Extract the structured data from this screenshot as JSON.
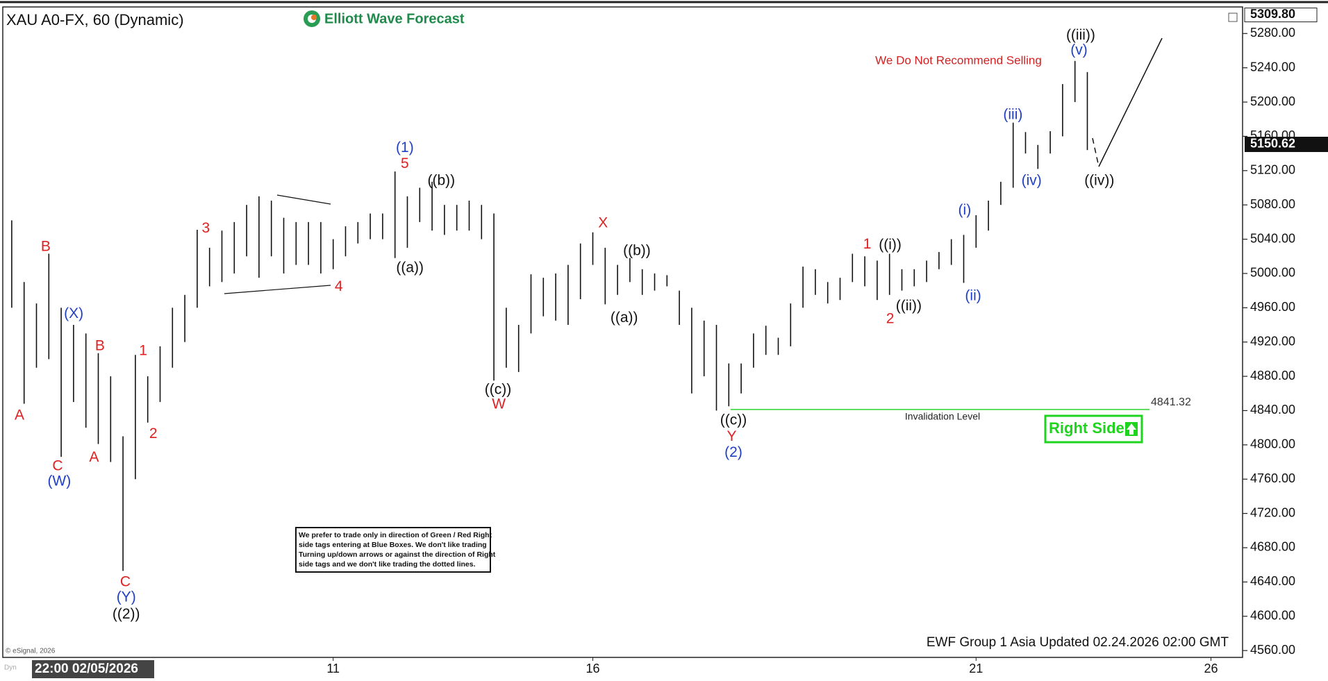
{
  "chart_data": {
    "type": "range-bar",
    "title": "XAU A0-FX, 60 (Dynamic)",
    "brand": "Elliott Wave Forecast",
    "warning": "We Do Not Recommend Selling",
    "categories": [
      "22:00 02/05/2026",
      null,
      null,
      null,
      null,
      null,
      null,
      null,
      null,
      null,
      null,
      null,
      null,
      null,
      null,
      null,
      null,
      null,
      null,
      null,
      null,
      null,
      null,
      null,
      null,
      null,
      "11",
      null,
      null,
      null,
      null,
      null,
      null,
      null,
      null,
      null,
      null,
      null,
      null,
      null,
      null,
      null,
      null,
      null,
      null,
      null,
      null,
      "16",
      null,
      null,
      null,
      null,
      null,
      null,
      null,
      null,
      null,
      null,
      null,
      null,
      null,
      null,
      null,
      null,
      null,
      null,
      null,
      null,
      null,
      null,
      null,
      null,
      null,
      null,
      null,
      null,
      null,
      null,
      "21",
      null,
      null,
      null,
      null,
      null,
      null,
      null,
      null,
      null,
      null,
      null,
      null,
      null,
      null,
      null,
      null,
      null,
      null,
      "26",
      null,
      null
    ],
    "high": [
      5062,
      4990,
      4965,
      5023,
      4960,
      4940,
      4930,
      4907,
      4880,
      4810,
      4905,
      4880,
      4915,
      4960,
      4975,
      5051,
      5030,
      5050,
      5060,
      5080,
      5090,
      5085,
      5065,
      5060,
      5060,
      5060,
      5040,
      5055,
      5060,
      5070,
      5070,
      5119,
      5090,
      5100,
      5107,
      5080,
      5080,
      5085,
      5080,
      5070,
      4960,
      4940,
      4999,
      4995,
      5000,
      5010,
      5035,
      5048,
      5030,
      5010,
      5018,
      5005,
      5000,
      4998,
      4980,
      4960,
      4945,
      4940,
      4895,
      4895,
      4930,
      4939,
      4925,
      4965,
      5008,
      5005,
      4990,
      4995,
      5023,
      5020,
      5015,
      5023,
      5005,
      5005,
      5015,
      5025,
      5040,
      5045,
      5068,
      5085,
      5107,
      5176,
      5165,
      5150,
      5166,
      5221,
      5248,
      5235,
      null,
      null,
      null,
      null,
      null,
      null,
      null,
      null,
      null,
      null,
      null,
      null
    ],
    "low": [
      4960,
      4848,
      4890,
      4900,
      4786,
      4850,
      4820,
      4801,
      4780,
      4653,
      4760,
      4826,
      4850,
      4890,
      4920,
      4960,
      4985,
      4990,
      5000,
      5020,
      4995,
      5020,
      5000,
      5010,
      5010,
      5000,
      5005,
      5020,
      5035,
      5040,
      5040,
      5018,
      5030,
      5060,
      5050,
      5045,
      5050,
      5050,
      5040,
      4875,
      4890,
      4885,
      4930,
      4950,
      4945,
      4940,
      4970,
      5010,
      4964,
      4975,
      4990,
      4975,
      4980,
      4985,
      4940,
      4860,
      4880,
      4840,
      4845,
      4860,
      4890,
      4905,
      4905,
      4915,
      4960,
      4975,
      4965,
      4969,
      4990,
      4985,
      4969,
      4975,
      4980,
      4985,
      4990,
      5005,
      5010,
      4989,
      5030,
      5050,
      5080,
      5100,
      5140,
      5122,
      5140,
      5160,
      5200,
      5144,
      null,
      null,
      null,
      null,
      null,
      null,
      null,
      null,
      null,
      null,
      null,
      null
    ],
    "ylim": [
      4552,
      5311
    ],
    "yticks": [
      {
        "value": 4560,
        "label": "4560.00"
      },
      {
        "value": 4600,
        "label": "4600.00"
      },
      {
        "value": 4640,
        "label": "4640.00"
      },
      {
        "value": 4680,
        "label": "4680.00"
      },
      {
        "value": 4720,
        "label": "4720.00"
      },
      {
        "value": 4760,
        "label": "4760.00"
      },
      {
        "value": 4800,
        "label": "4800.00"
      },
      {
        "value": 4840,
        "label": "4840.00"
      },
      {
        "value": 4880,
        "label": "4880.00"
      },
      {
        "value": 4920,
        "label": "4920.00"
      },
      {
        "value": 4960,
        "label": "4960.00"
      },
      {
        "value": 5000,
        "label": "5000.00"
      },
      {
        "value": 5040,
        "label": "5040.00"
      },
      {
        "value": 5080,
        "label": "5080.00"
      },
      {
        "value": 5120,
        "label": "5120.00"
      },
      {
        "value": 5160,
        "label": "5160.00"
      },
      {
        "value": 5200,
        "label": "5200.00"
      },
      {
        "value": 5240,
        "label": "5240.00"
      },
      {
        "value": 5280,
        "label": "5280.00"
      }
    ],
    "top_price": {
      "value": 5309.8,
      "label": "5309.80"
    },
    "last_price": 5150.62,
    "invalidation": {
      "label": "Invalidation Level",
      "value": 4841.32
    },
    "right_side": "Right Side",
    "note": [
      "We prefer to trade only in direction of Green / Red Right",
      "side tags entering at Blue Boxes. We don't like trading",
      "Turning up/down arrows or against the direction of Right",
      "side tags and we don't like trading the dotted lines."
    ],
    "annotations": [
      {
        "text": "A",
        "color": "#e02020"
      },
      {
        "text": "B",
        "color": "#e02020"
      },
      {
        "text": "(X)",
        "color": "#1f3fc4"
      },
      {
        "text": "C",
        "color": "#e02020"
      },
      {
        "text": "(W)",
        "color": "#1f3fc4"
      },
      {
        "text": "A",
        "color": "#e02020"
      },
      {
        "text": "B",
        "color": "#e02020"
      },
      {
        "text": "1",
        "color": "#e02020"
      },
      {
        "text": "2",
        "color": "#e02020"
      },
      {
        "text": "C",
        "color": "#e02020"
      },
      {
        "text": "(Y)",
        "color": "#1f3fc4"
      },
      {
        "text": "((2))",
        "color": "#111111"
      },
      {
        "text": "3",
        "color": "#e02020"
      },
      {
        "text": "4",
        "color": "#e02020"
      },
      {
        "text": "5",
        "color": "#e02020"
      },
      {
        "text": "(1)",
        "color": "#1f3fc4"
      },
      {
        "text": "((a))",
        "color": "#111111"
      },
      {
        "text": "((b))",
        "color": "#111111"
      },
      {
        "text": "((c))",
        "color": "#111111"
      },
      {
        "text": "W",
        "color": "#e02020"
      },
      {
        "text": "X",
        "color": "#e02020"
      },
      {
        "text": "((b))",
        "color": "#111111"
      },
      {
        "text": "((a))",
        "color": "#111111"
      },
      {
        "text": "((c))",
        "color": "#111111"
      },
      {
        "text": "Y",
        "color": "#e02020"
      },
      {
        "text": "(2)",
        "color": "#1f3fc4"
      },
      {
        "text": "1",
        "color": "#e02020"
      },
      {
        "text": "((i))",
        "color": "#111111"
      },
      {
        "text": "2",
        "color": "#e02020"
      },
      {
        "text": "((ii))",
        "color": "#111111"
      },
      {
        "text": "(i)",
        "color": "#1f3fc4"
      },
      {
        "text": "(ii)",
        "color": "#1f3fc4"
      },
      {
        "text": "(iii)",
        "color": "#1f3fc4"
      },
      {
        "text": "(iv)",
        "color": "#1f3fc4"
      },
      {
        "text": "((iii))",
        "color": "#111111"
      },
      {
        "text": "(v)",
        "color": "#1f3fc4"
      },
      {
        "text": "((iv))",
        "color": "#111111"
      }
    ],
    "footer": "EWF Group 1 Asia Updated 02.24.2026 02:00 GMT",
    "copyright": "© eSignal, 2026",
    "dyn": "Dyn"
  }
}
